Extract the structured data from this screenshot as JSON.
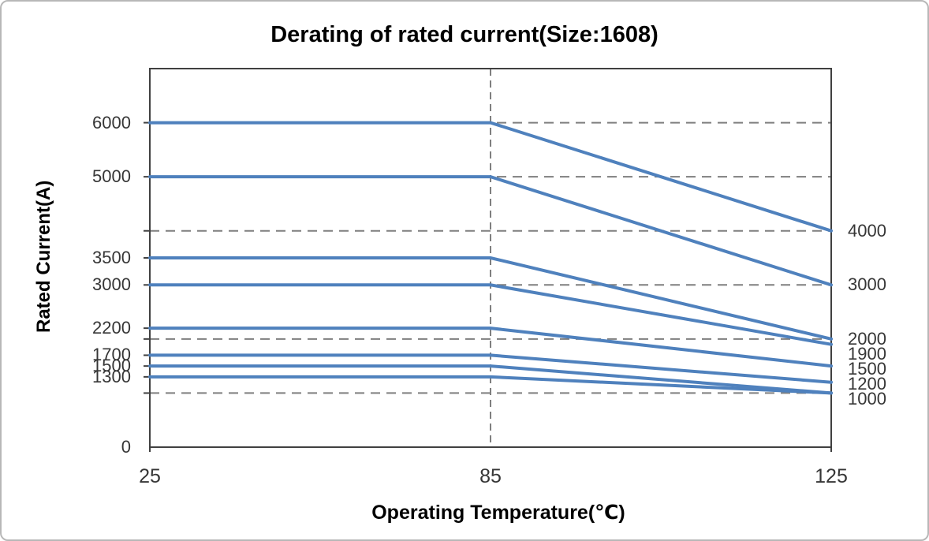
{
  "chart_data": {
    "type": "line",
    "title": "Derating of rated current(Size:1608)",
    "xlabel": "Operating Temperature(℃)",
    "ylabel": "Rated Current(A)",
    "x": [
      25,
      85,
      125
    ],
    "x_tick_labels": [
      "25",
      "85",
      "125"
    ],
    "ylim": [
      0,
      7000
    ],
    "grid": "dashed horizontal at thousands, dashed vertical at 85",
    "gridlines_y": [
      6000,
      5000,
      4000,
      3000,
      2000,
      1000
    ],
    "gridline_vertical_x_index": 1,
    "legend": "none (series labeled at line ends)",
    "series": [
      {
        "start_label": "6000",
        "end_label": "4000",
        "values": [
          6000,
          6000,
          4000
        ]
      },
      {
        "start_label": "5000",
        "end_label": "3000",
        "values": [
          5000,
          5000,
          3000
        ]
      },
      {
        "start_label": "3500",
        "end_label": "2000",
        "values": [
          3500,
          3500,
          2000
        ]
      },
      {
        "start_label": "3000",
        "end_label": "1900",
        "values": [
          3000,
          3000,
          1900
        ]
      },
      {
        "start_label": "2200",
        "end_label": "1500",
        "values": [
          2200,
          2200,
          1500
        ]
      },
      {
        "start_label": "1700",
        "end_label": "1200",
        "values": [
          1700,
          1700,
          1200
        ]
      },
      {
        "start_label": "1500",
        "end_label": "1000",
        "values": [
          1500,
          1500,
          1000
        ]
      },
      {
        "start_label": "1300",
        "end_label": "1000",
        "values": [
          1300,
          1300,
          1000
        ]
      }
    ],
    "left_axis_labels": [
      {
        "text": "6000",
        "value": 6000
      },
      {
        "text": "5000",
        "value": 5000
      },
      {
        "text": "3500",
        "value": 3500
      },
      {
        "text": "3000",
        "value": 3000
      },
      {
        "text": "2200",
        "value": 2200
      },
      {
        "text": "1700",
        "value": 1700
      },
      {
        "text": "1500",
        "value": 1500
      },
      {
        "text": "1300",
        "value": 1300
      },
      {
        "text": "0",
        "value": 0
      }
    ],
    "right_axis_labels": [
      {
        "text": "4000",
        "value": 4000
      },
      {
        "text": "3000",
        "value": 3000
      },
      {
        "text": "2000",
        "value": 2000
      },
      {
        "text": "1900",
        "value": 1900
      },
      {
        "text": "1500",
        "value": 1500
      },
      {
        "text": "1200",
        "value": 1200
      },
      {
        "text": "1000",
        "value": 1000
      }
    ],
    "left_tick_values": [
      6000,
      5000,
      4000,
      3500,
      3000,
      2200,
      2000,
      1700,
      1500,
      1300,
      1000
    ],
    "colors": {
      "line": "#4F81BD",
      "grid": "#7F7F7F",
      "axis": "#404040",
      "tick_text": "#363636",
      "title_text": "#000000",
      "outer_border": "#B8B8B8",
      "background": "#FFFFFF"
    }
  }
}
